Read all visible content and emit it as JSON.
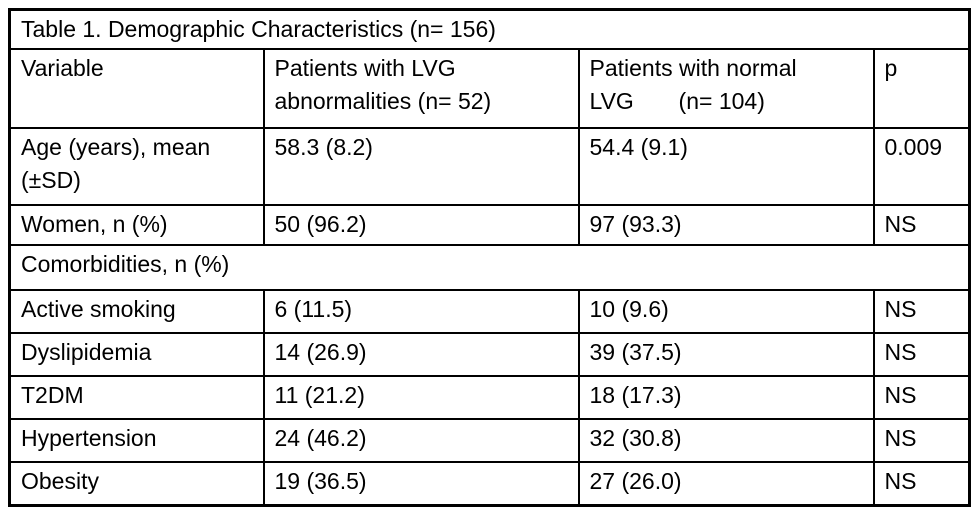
{
  "table": {
    "title": "Table 1. Demographic Characteristics (n= 156)",
    "columns": [
      {
        "label": "Variable"
      },
      {
        "label": "Patients with LVG\nabnormalities (n= 52)"
      },
      {
        "label": "Patients with normal\nLVG       (n= 104)"
      },
      {
        "label": "p"
      }
    ],
    "section": {
      "label": "Comorbidities, n (%)"
    },
    "rows": [
      {
        "variable": "Age (years), mean\n(±SD)",
        "lvg_abnormal": "58.3 (8.2)",
        "lvg_normal": "54.4 (9.1)",
        "p": "0.009"
      },
      {
        "variable": "Women, n (%)",
        "lvg_abnormal": "50 (96.2)",
        "lvg_normal": "97 (93.3)",
        "p": "NS"
      },
      {
        "variable": "Active smoking",
        "lvg_abnormal": "6 (11.5)",
        "lvg_normal": "10 (9.6)",
        "p": "NS"
      },
      {
        "variable": "Dyslipidemia",
        "lvg_abnormal": "14 (26.9)",
        "lvg_normal": "39 (37.5)",
        "p": "NS"
      },
      {
        "variable": "T2DM",
        "lvg_abnormal": "11 (21.2)",
        "lvg_normal": "18 (17.3)",
        "p": "NS"
      },
      {
        "variable": "Hypertension",
        "lvg_abnormal": "24 (46.2)",
        "lvg_normal": "32 (30.8)",
        "p": "NS"
      },
      {
        "variable": "Obesity",
        "lvg_abnormal": "19 (36.5)",
        "lvg_normal": "27 (26.0)",
        "p": "NS"
      }
    ],
    "colors": {
      "border": "#000000",
      "text": "#000000",
      "background": "#ffffff"
    }
  }
}
